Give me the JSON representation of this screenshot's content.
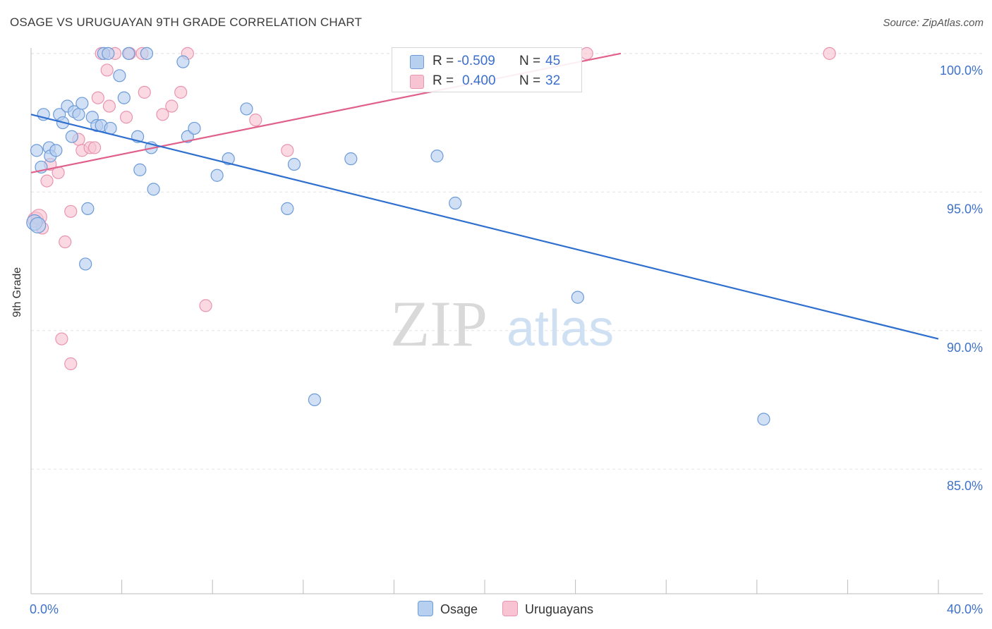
{
  "title": "OSAGE VS URUGUAYAN 9TH GRADE CORRELATION CHART",
  "source": "Source: ZipAtlas.com",
  "watermark": {
    "zip": "ZIP",
    "atlas": "atlas"
  },
  "legend": {
    "r_label": "R =",
    "n_label": "N =",
    "rows": [
      {
        "r": "-0.509",
        "n": "45"
      },
      {
        "r": "0.400",
        "n": "32"
      }
    ]
  },
  "bottom_legend": [
    "Osage",
    "Uruguayans"
  ],
  "colors": {
    "osage_fill": "#b8d0f0",
    "osage_stroke": "#6c9bd8",
    "osage_line": "#2e6fd0",
    "uru_fill": "#f8c4d4",
    "uru_stroke": "#e995b0",
    "uru_line": "#e0608a",
    "axis_text": "#3f72c9",
    "grid": "#e3e3e3"
  },
  "chart_data": {
    "type": "scatter",
    "title": "OSAGE VS URUGUAYAN 9TH GRADE CORRELATION CHART",
    "xlabel": "",
    "ylabel": "9th Grade",
    "xlim": [
      0,
      40
    ],
    "ylim": [
      80.5,
      100.2
    ],
    "x_tick_labels": [
      "0.0%",
      "40.0%"
    ],
    "y_ticks": [
      85,
      90,
      95,
      100
    ],
    "y_tick_labels": [
      "85.0%",
      "90.0%",
      "95.0%",
      "100.0%"
    ],
    "series": [
      {
        "name": "Osage",
        "r": -0.509,
        "n": 45,
        "trend": {
          "x": [
            0,
            40
          ],
          "y": [
            97.8,
            89.7
          ]
        },
        "points": [
          [
            0.15,
            93.9
          ],
          [
            0.3,
            93.8
          ],
          [
            0.25,
            96.5
          ],
          [
            0.45,
            95.9
          ],
          [
            0.55,
            97.8
          ],
          [
            0.8,
            96.6
          ],
          [
            0.85,
            96.3
          ],
          [
            1.1,
            96.5
          ],
          [
            1.25,
            97.8
          ],
          [
            1.4,
            97.5
          ],
          [
            1.6,
            98.1
          ],
          [
            1.8,
            97.0
          ],
          [
            1.9,
            97.9
          ],
          [
            2.1,
            97.8
          ],
          [
            2.25,
            98.2
          ],
          [
            2.5,
            94.4
          ],
          [
            2.4,
            92.4
          ],
          [
            2.7,
            97.7
          ],
          [
            2.9,
            97.4
          ],
          [
            3.1,
            97.4
          ],
          [
            3.2,
            100.0
          ],
          [
            3.4,
            100.0
          ],
          [
            3.5,
            97.3
          ],
          [
            3.9,
            99.2
          ],
          [
            4.1,
            98.4
          ],
          [
            4.3,
            100.0
          ],
          [
            4.7,
            97.0
          ],
          [
            4.8,
            95.8
          ],
          [
            5.1,
            100.0
          ],
          [
            5.3,
            96.6
          ],
          [
            5.4,
            95.1
          ],
          [
            6.7,
            99.7
          ],
          [
            6.9,
            97.0
          ],
          [
            7.2,
            97.3
          ],
          [
            8.2,
            95.6
          ],
          [
            8.7,
            96.2
          ],
          [
            9.5,
            98.0
          ],
          [
            11.3,
            94.4
          ],
          [
            11.6,
            96.0
          ],
          [
            12.5,
            87.5
          ],
          [
            14.1,
            96.2
          ],
          [
            17.9,
            96.3
          ],
          [
            18.7,
            94.6
          ],
          [
            24.1,
            91.2
          ],
          [
            32.3,
            86.8
          ]
        ]
      },
      {
        "name": "Uruguayans",
        "r": 0.4,
        "n": 32,
        "trend": {
          "x": [
            0,
            26
          ],
          "y": [
            95.7,
            100.0
          ]
        },
        "points": [
          [
            0.2,
            94.0
          ],
          [
            0.35,
            94.1
          ],
          [
            0.5,
            93.7
          ],
          [
            0.7,
            95.4
          ],
          [
            0.85,
            96.0
          ],
          [
            1.2,
            95.7
          ],
          [
            1.35,
            89.7
          ],
          [
            1.5,
            93.2
          ],
          [
            1.75,
            94.3
          ],
          [
            1.75,
            88.8
          ],
          [
            2.1,
            96.9
          ],
          [
            2.25,
            96.5
          ],
          [
            2.6,
            96.6
          ],
          [
            2.8,
            96.6
          ],
          [
            2.95,
            98.4
          ],
          [
            3.1,
            100.0
          ],
          [
            3.35,
            99.4
          ],
          [
            3.45,
            98.1
          ],
          [
            3.7,
            100.0
          ],
          [
            4.2,
            97.7
          ],
          [
            4.35,
            100.0
          ],
          [
            4.9,
            100.0
          ],
          [
            5.0,
            98.6
          ],
          [
            5.8,
            97.8
          ],
          [
            6.2,
            98.1
          ],
          [
            6.6,
            98.6
          ],
          [
            6.9,
            100.0
          ],
          [
            7.7,
            90.9
          ],
          [
            9.9,
            97.6
          ],
          [
            11.3,
            96.5
          ],
          [
            24.5,
            100.0
          ],
          [
            35.2,
            100.0
          ]
        ]
      }
    ]
  }
}
